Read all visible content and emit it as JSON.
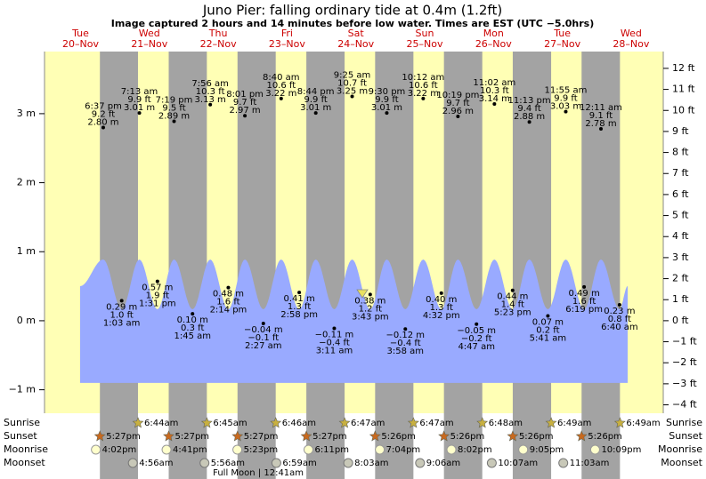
{
  "title": "Juno Pier: falling  ordinary tide at 0.4m (1.2ft)",
  "subtitle": "Image captured 2 hours and 14 minutes before low water. Times are EST (UTC −5.0hrs)",
  "chart_data": {
    "type": "tide",
    "ylim": [
      -1.34,
      3.9
    ],
    "yticks": [
      {
        "value": -1,
        "label": "−1 m"
      },
      {
        "value": 0,
        "label": "0 m"
      },
      {
        "value": 1,
        "label": "1 m"
      },
      {
        "value": 2,
        "label": "2 m"
      },
      {
        "value": 3,
        "label": "3 m"
      }
    ],
    "y2lim": [
      -4.4,
      12.8
    ],
    "y2ticks": [
      {
        "value": -4,
        "label": "−4 ft"
      },
      {
        "value": -3,
        "label": "−3 ft"
      },
      {
        "value": -2,
        "label": "−2 ft"
      },
      {
        "value": -1,
        "label": "−1 ft"
      },
      {
        "value": 0,
        "label": "0 ft"
      },
      {
        "value": 1,
        "label": "1 ft"
      },
      {
        "value": 2,
        "label": "2 ft"
      },
      {
        "value": 3,
        "label": "3 ft"
      },
      {
        "value": 4,
        "label": "4 ft"
      },
      {
        "value": 5,
        "label": "5 ft"
      },
      {
        "value": 6,
        "label": "6 ft"
      },
      {
        "value": 7,
        "label": "7 ft"
      },
      {
        "value": 8,
        "label": "8 ft"
      },
      {
        "value": 9,
        "label": "9 ft"
      },
      {
        "value": 10,
        "label": "10 ft"
      },
      {
        "value": 11,
        "label": "11 ft"
      },
      {
        "value": 12,
        "label": "12 ft"
      }
    ],
    "row_labels": [
      "Sunrise",
      "Sunset",
      "Moonrise",
      "Moonset"
    ],
    "days": [
      {
        "weekday": "Tue",
        "date": "20–Nov",
        "sunrise": null,
        "sunset": "5:27pm",
        "moonrise": "4:02pm",
        "moonset": null,
        "tides": [
          {
            "time": "6:37 pm",
            "m": 2.8,
            "m_label": "2.80 m",
            "ft_label": "9.2 ft"
          }
        ]
      },
      {
        "weekday": "Wed",
        "date": "21–Nov",
        "sunrise": "6:44am",
        "sunset": "5:27pm",
        "moonrise": "4:41pm",
        "moonset": "4:56am",
        "tides": [
          {
            "time": "1:03 am",
            "m": 0.29,
            "m_label": "0.29 m",
            "ft_label": "1.0 ft"
          },
          {
            "time": "7:13 am",
            "m": 3.01,
            "m_label": "3.01 m",
            "ft_label": "9.9 ft"
          },
          {
            "time": "1:31 pm",
            "m": 0.57,
            "m_label": "0.57 m",
            "ft_label": "1.9 ft"
          },
          {
            "time": "7:19 pm",
            "m": 2.89,
            "m_label": "2.89 m",
            "ft_label": "9.5 ft"
          }
        ]
      },
      {
        "weekday": "Thu",
        "date": "22–Nov",
        "sunrise": "6:45am",
        "sunset": "5:27pm",
        "moonrise": "5:23pm",
        "moonset": "5:56am",
        "tides": [
          {
            "time": "1:45 am",
            "m": 0.1,
            "m_label": "0.10 m",
            "ft_label": "0.3 ft"
          },
          {
            "time": "7:56 am",
            "m": 3.13,
            "m_label": "3.13 m",
            "ft_label": "10.3 ft"
          },
          {
            "time": "2:14 pm",
            "m": 0.48,
            "m_label": "0.48 m",
            "ft_label": "1.6 ft"
          },
          {
            "time": "8:01 pm",
            "m": 2.97,
            "m_label": "2.97 m",
            "ft_label": "9.7 ft"
          }
        ]
      },
      {
        "weekday": "Fri",
        "date": "23–Nov",
        "sunrise": "6:46am",
        "sunset": "5:27pm",
        "moonrise": "6:11pm",
        "moonset": "6:59am",
        "full_moon": "Full Moon | 12:41am",
        "tides": [
          {
            "time": "2:27 am",
            "m": -0.04,
            "m_label": "−0.04 m",
            "ft_label": "−0.1 ft"
          },
          {
            "time": "8:40 am",
            "m": 3.22,
            "m_label": "3.22 m",
            "ft_label": "10.6 ft"
          },
          {
            "time": "2:58 pm",
            "m": 0.41,
            "m_label": "0.41 m",
            "ft_label": "1.3 ft"
          },
          {
            "time": "8:44 pm",
            "m": 3.01,
            "m_label": "3.01 m",
            "ft_label": "9.9 ft"
          }
        ]
      },
      {
        "weekday": "Sat",
        "date": "24–Nov",
        "sunrise": "6:47am",
        "sunset": "5:26pm",
        "moonrise": "7:04pm",
        "moonset": "8:03am",
        "tides": [
          {
            "time": "3:11 am",
            "m": -0.11,
            "m_label": "−0.11 m",
            "ft_label": "−0.4 ft"
          },
          {
            "time": "9:25 am",
            "m": 3.25,
            "m_label": "3.25 m",
            "ft_label": "10.7 ft"
          },
          {
            "time": "3:43 pm",
            "m": 0.38,
            "m_label": "0.38 m",
            "ft_label": "1.2 ft"
          },
          {
            "time": "9:30 pm",
            "m": 3.01,
            "m_label": "3.01 m",
            "ft_label": "9.9 ft"
          }
        ]
      },
      {
        "weekday": "Sun",
        "date": "25–Nov",
        "sunrise": "6:47am",
        "sunset": "5:26pm",
        "moonrise": "8:02pm",
        "moonset": "9:06am",
        "tides": [
          {
            "time": "3:58 am",
            "m": -0.12,
            "m_label": "−0.12 m",
            "ft_label": "−0.4 ft"
          },
          {
            "time": "10:12 am",
            "m": 3.22,
            "m_label": "3.22 m",
            "ft_label": "10.6 ft"
          },
          {
            "time": "4:32 pm",
            "m": 0.4,
            "m_label": "0.40 m",
            "ft_label": "1.3 ft"
          },
          {
            "time": "10:19 pm",
            "m": 2.96,
            "m_label": "2.96 m",
            "ft_label": "9.7 ft"
          }
        ]
      },
      {
        "weekday": "Mon",
        "date": "26–Nov",
        "sunrise": "6:48am",
        "sunset": "5:26pm",
        "moonrise": "9:05pm",
        "moonset": "10:07am",
        "tides": [
          {
            "time": "4:47 am",
            "m": -0.05,
            "m_label": "−0.05 m",
            "ft_label": "−0.2 ft"
          },
          {
            "time": "11:02 am",
            "m": 3.14,
            "m_label": "3.14 m",
            "ft_label": "10.3 ft"
          },
          {
            "time": "5:23 pm",
            "m": 0.44,
            "m_label": "0.44 m",
            "ft_label": "1.4 ft"
          },
          {
            "time": "11:13 pm",
            "m": 2.88,
            "m_label": "2.88 m",
            "ft_label": "9.4 ft"
          }
        ]
      },
      {
        "weekday": "Tue",
        "date": "27–Nov",
        "sunrise": "6:49am",
        "sunset": "5:26pm",
        "moonrise": "10:09pm",
        "moonset": "11:03am",
        "tides": [
          {
            "time": "5:41 am",
            "m": 0.07,
            "m_label": "0.07 m",
            "ft_label": "0.2 ft"
          },
          {
            "time": "11:55 am",
            "m": 3.03,
            "m_label": "3.03 m",
            "ft_label": "9.9 ft"
          },
          {
            "time": "6:19 pm",
            "m": 0.49,
            "m_label": "0.49 m",
            "ft_label": "1.6 ft"
          }
        ]
      },
      {
        "weekday": "Wed",
        "date": "28–Nov",
        "sunrise": "6:49am",
        "sunset": null,
        "moonrise": null,
        "moonset": null,
        "tides": [
          {
            "time": "12:11 am",
            "m": 2.78,
            "m_label": "2.78 m",
            "ft_label": "9.1 ft"
          },
          {
            "time": "6:40 am",
            "m": 0.23,
            "m_label": "0.23 m",
            "ft_label": "0.8 ft"
          }
        ]
      }
    ]
  }
}
